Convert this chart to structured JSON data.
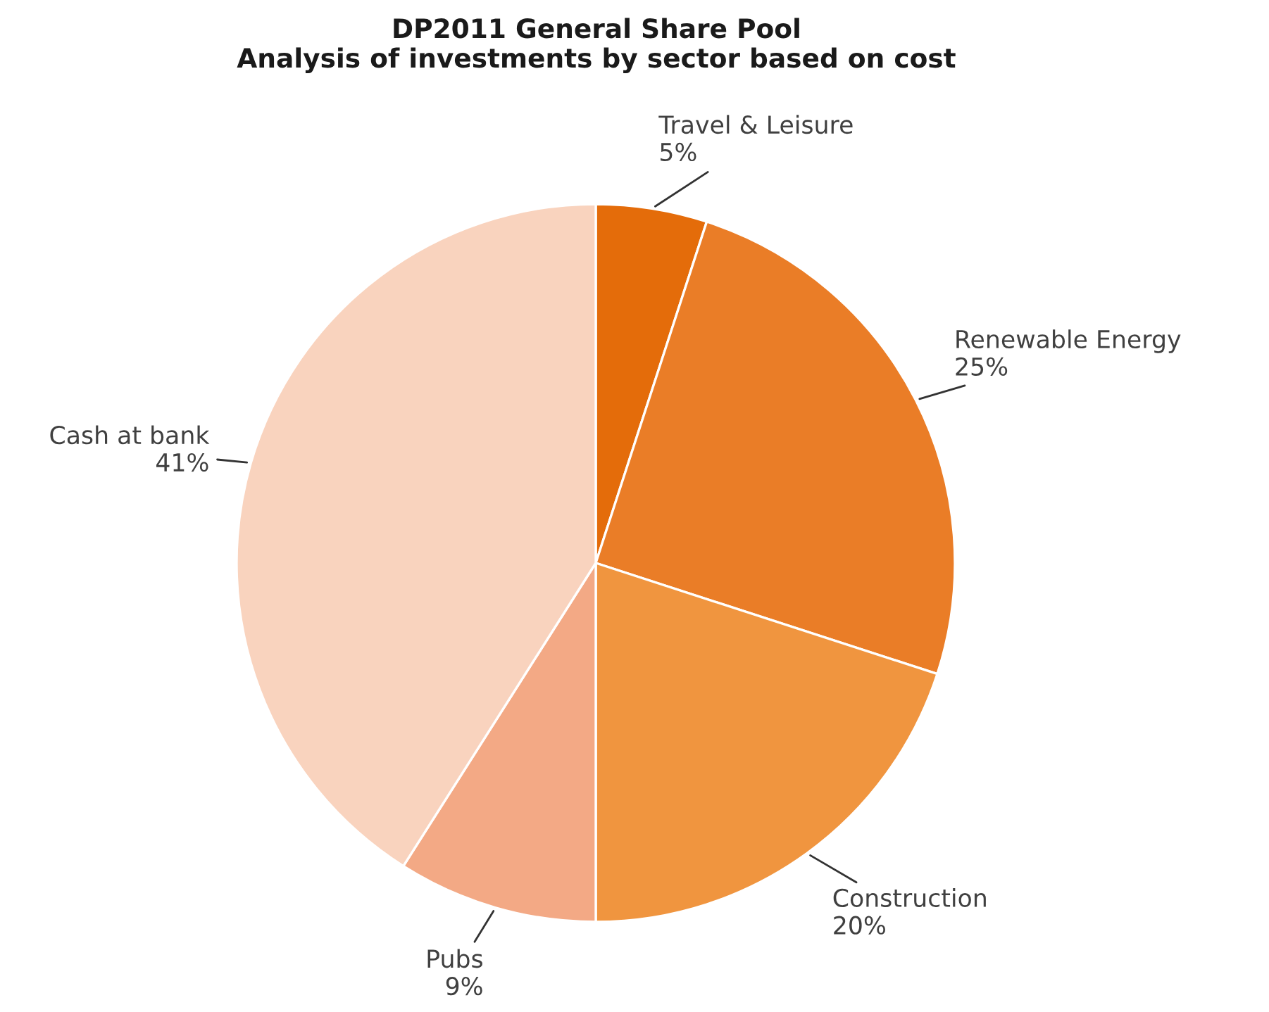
{
  "chart_data": {
    "type": "pie",
    "title": "DP2011 General Share Pool\nAnalysis of investments by sector based on cost",
    "categories": [
      "Travel & Leisure",
      "Renewable Energy",
      "Construction",
      "Pubs",
      "Cash at bank"
    ],
    "values": [
      5,
      25,
      20,
      9,
      41
    ],
    "value_labels": [
      "5%",
      "25%",
      "20%",
      "9%",
      "41%"
    ],
    "colors": [
      "#e46c0a",
      "#ea7d27",
      "#f0953f",
      "#f3a985",
      "#f9d3be"
    ],
    "legend": false
  }
}
